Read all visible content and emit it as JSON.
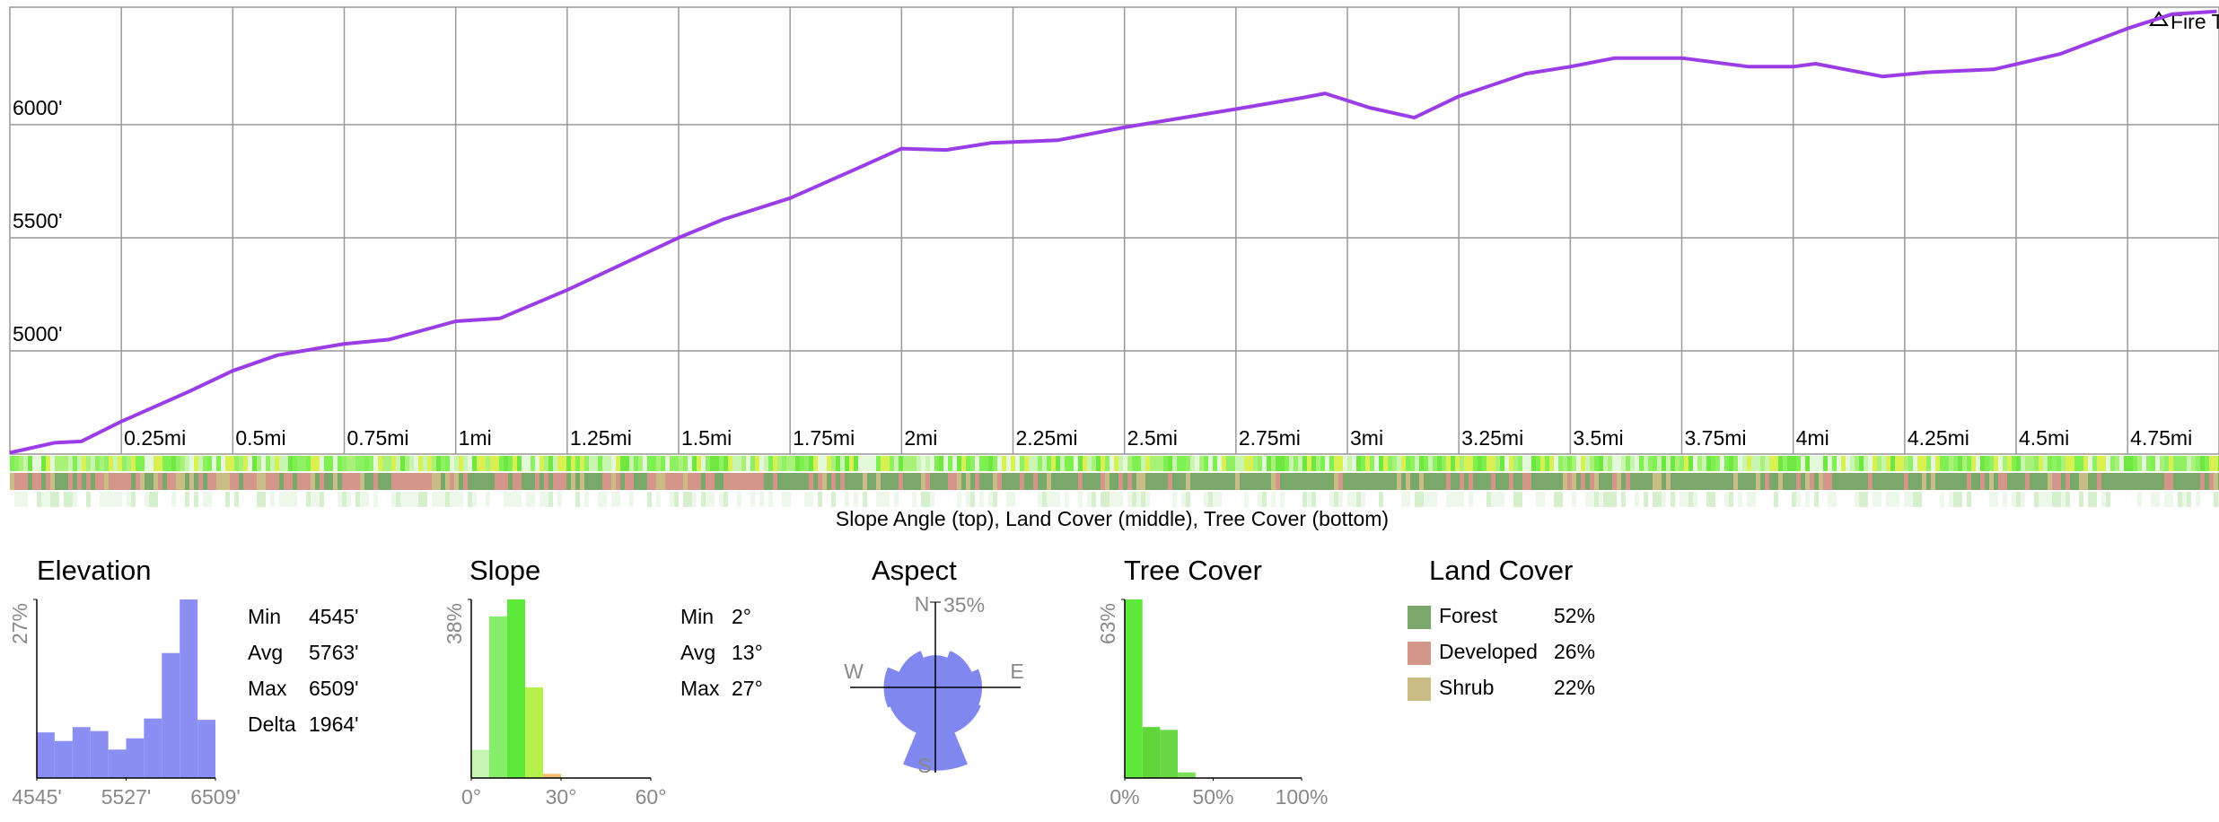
{
  "strip_caption": "Slope Angle (top), Land Cover (middle), Tree Cover (bottom)",
  "chart_data": [
    {
      "type": "line",
      "color": "#9a3de6",
      "grid": true,
      "annotation": "Fire T",
      "x": [
        0,
        0.1,
        0.16,
        0.25,
        0.4,
        0.5,
        0.6,
        0.75,
        0.85,
        1.0,
        1.1,
        1.25,
        1.5,
        1.6,
        1.75,
        1.9,
        2.0,
        2.1,
        2.2,
        2.35,
        2.5,
        2.75,
        2.9,
        2.95,
        3.05,
        3.15,
        3.25,
        3.4,
        3.5,
        3.6,
        3.75,
        3.9,
        4.0,
        4.05,
        4.2,
        4.3,
        4.45,
        4.6,
        4.75,
        4.85,
        4.95
      ],
      "values": [
        4550,
        4594,
        4600,
        4688,
        4819,
        4912,
        4981,
        5031,
        5050,
        5131,
        5144,
        5269,
        5500,
        5581,
        5675,
        5806,
        5894,
        5888,
        5919,
        5931,
        5988,
        6069,
        6119,
        6138,
        6075,
        6031,
        6125,
        6225,
        6256,
        6294,
        6294,
        6256,
        6256,
        6269,
        6213,
        6231,
        6244,
        6313,
        6425,
        6488,
        6500
      ],
      "xlim": [
        0,
        4.955
      ],
      "ylim": [
        4544,
        6519
      ],
      "xticks": [
        {
          "value": 0.25,
          "label": "0.25mi"
        },
        {
          "value": 0.5,
          "label": "0.5mi"
        },
        {
          "value": 0.75,
          "label": "0.75mi"
        },
        {
          "value": 1,
          "label": "1mi"
        },
        {
          "value": 1.25,
          "label": "1.25mi"
        },
        {
          "value": 1.5,
          "label": "1.5mi"
        },
        {
          "value": 1.75,
          "label": "1.75mi"
        },
        {
          "value": 2,
          "label": "2mi"
        },
        {
          "value": 2.25,
          "label": "2.25mi"
        },
        {
          "value": 2.5,
          "label": "2.5mi"
        },
        {
          "value": 2.75,
          "label": "2.75mi"
        },
        {
          "value": 3,
          "label": "3mi"
        },
        {
          "value": 3.25,
          "label": "3.25mi"
        },
        {
          "value": 3.5,
          "label": "3.5mi"
        },
        {
          "value": 3.75,
          "label": "3.75mi"
        },
        {
          "value": 4,
          "label": "4mi"
        },
        {
          "value": 4.25,
          "label": "4.25mi"
        },
        {
          "value": 4.5,
          "label": "4.5mi"
        },
        {
          "value": 4.75,
          "label": "4.75mi"
        }
      ],
      "yticks": [
        {
          "value": 5000,
          "label": "5000'"
        },
        {
          "value": 5500,
          "label": "5500'"
        },
        {
          "value": 6000,
          "label": "6000'"
        }
      ]
    },
    {
      "type": "histogram",
      "title": "Elevation",
      "color": "#8b8ef2",
      "bins": [
        4545,
        4741,
        4938,
        5134,
        5331,
        5527,
        5723,
        5920,
        6116,
        6313,
        6509
      ],
      "values": [
        6.9,
        5.6,
        7.7,
        7.1,
        4.3,
        6,
        9,
        18.9,
        27,
        8.8
      ],
      "xlim": [
        4545,
        6509
      ],
      "ylim": [
        0,
        27
      ],
      "xticks": [
        {
          "value": 4545,
          "label": "4545'"
        },
        {
          "value": 5527,
          "label": "5527'"
        },
        {
          "value": 6509,
          "label": "6509'"
        }
      ],
      "yticks": [
        {
          "value": 27,
          "label": "27%"
        }
      ],
      "stats": [
        {
          "label": "Min",
          "value": "4545'"
        },
        {
          "label": "Avg",
          "value": "5763'"
        },
        {
          "label": "Max",
          "value": "6509'"
        },
        {
          "label": "Delta",
          "value": "1964'"
        }
      ]
    },
    {
      "type": "histogram",
      "title": "Slope",
      "bins": [
        0,
        6,
        12,
        18,
        24,
        30
      ],
      "values": [
        6,
        34.4,
        38,
        19.3,
        0.9
      ],
      "colors": [
        "#c6f5b4",
        "#86ee6a",
        "#5ee83a",
        "#b6f04a",
        "#f0c070"
      ],
      "xlim": [
        0,
        60
      ],
      "ylim": [
        0,
        38
      ],
      "xticks": [
        {
          "value": 0,
          "label": "0°"
        },
        {
          "value": 30,
          "label": "30°"
        },
        {
          "value": 60,
          "label": "60°"
        }
      ],
      "yticks": [
        {
          "value": 38,
          "label": "38%"
        }
      ],
      "stats": [
        {
          "label": "Min",
          "value": "2°"
        },
        {
          "label": "Avg",
          "value": "13°"
        },
        {
          "label": "Max",
          "value": "27°"
        }
      ]
    },
    {
      "type": "polar",
      "title": "Aspect",
      "color": "#8088f0",
      "categories": [
        "N",
        null,
        "E",
        null,
        "S",
        null,
        "W",
        null
      ],
      "values": [
        13,
        16,
        19,
        20,
        34,
        20,
        21,
        16
      ],
      "rlim": [
        0,
        35
      ],
      "rticks": [
        {
          "value": 35,
          "label": "35%"
        }
      ]
    },
    {
      "type": "histogram",
      "title": "Tree Cover",
      "bins": [
        0,
        10,
        20,
        30,
        40
      ],
      "values": [
        63,
        18,
        17,
        2
      ],
      "colors": [
        "#5ee83a",
        "#5fd63a",
        "#6ad845",
        "#7ee05a"
      ],
      "xlim": [
        0,
        100
      ],
      "ylim": [
        0,
        63
      ],
      "xticks": [
        {
          "value": 0,
          "label": "0%"
        },
        {
          "value": 50,
          "label": "50%"
        },
        {
          "value": 100,
          "label": "100%"
        }
      ],
      "yticks": [
        {
          "value": 63,
          "label": "63%"
        }
      ]
    },
    {
      "type": "legend",
      "title": "Land Cover",
      "categories": [
        "Forest",
        "Developed",
        "Shrub"
      ],
      "values": [
        52,
        26,
        22
      ],
      "value_labels": [
        "52%",
        "26%",
        "22%"
      ],
      "colors": [
        "#7aa86a",
        "#d4958a",
        "#c9bd85"
      ]
    }
  ]
}
